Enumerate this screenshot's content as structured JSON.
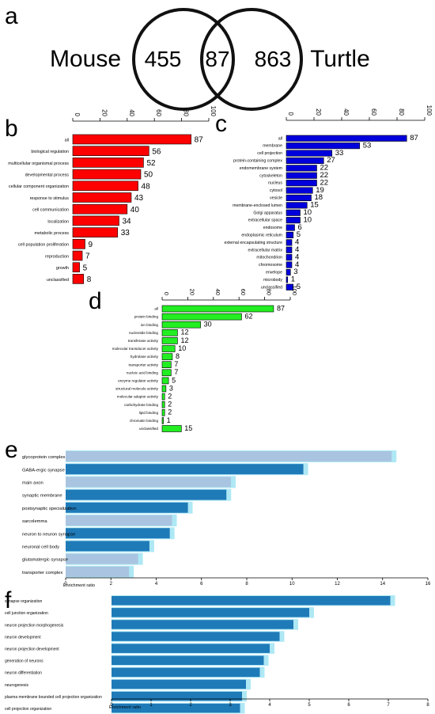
{
  "panels": {
    "a": "a",
    "b": "b",
    "c": "c",
    "d": "d",
    "e": "e",
    "f": "f"
  },
  "venn": {
    "left_label": "Mouse",
    "right_label": "Turtle",
    "left_only": "455",
    "overlap": "87",
    "right_only": "863"
  },
  "colors": {
    "panel_b": "#ff0000",
    "panel_c": "#0000dd",
    "panel_d": "#22ee22",
    "dark_bar": "#1f7ab8",
    "light_bar": "#a9c4e0",
    "glow": "#aee8f5"
  },
  "enrichment_label": "Enrichment ratio",
  "chart_data": [
    {
      "panel": "b",
      "type": "bar",
      "orientation": "horizontal",
      "xlim": [
        0,
        100
      ],
      "ticks": [
        "0",
        "20",
        "40",
        "60",
        "80",
        "100"
      ],
      "categories": [
        "all",
        "biological regulation",
        "multicellular organismal process",
        "developmental process",
        "cellular component organization",
        "response to stimulus",
        "cell communication",
        "localization",
        "metabolic process",
        "cell population proliferation",
        "reproduction",
        "growth",
        "unclassified"
      ],
      "values": [
        87,
        56,
        52,
        50,
        48,
        43,
        40,
        34,
        33,
        9,
        7,
        5,
        8
      ]
    },
    {
      "panel": "c",
      "type": "bar",
      "orientation": "horizontal",
      "xlim": [
        0,
        100
      ],
      "ticks": [
        "0",
        "20",
        "40",
        "60",
        "80",
        "100"
      ],
      "categories": [
        "all",
        "membrane",
        "cell projection",
        "protein-containing complex",
        "endomembrane system",
        "cytoskeleton",
        "nucleus",
        "cytosol",
        "vesicle",
        "membrane-enclosed lumen",
        "Golgi apparatus",
        "extracellular space",
        "endosome",
        "endoplasmic reticulum",
        "external encapsulating structure",
        "extracellular matrix",
        "mitochondrion",
        "chromosome",
        "envelope",
        "microbody",
        "unclassified"
      ],
      "values": [
        87,
        53,
        33,
        27,
        22,
        22,
        22,
        19,
        18,
        15,
        10,
        10,
        6,
        5,
        4,
        4,
        4,
        4,
        3,
        1,
        5
      ]
    },
    {
      "panel": "d",
      "type": "bar",
      "orientation": "horizontal",
      "xlim": [
        0,
        100
      ],
      "ticks": [
        "0",
        "20",
        "40",
        "60",
        "80",
        "100"
      ],
      "categories": [
        "all",
        "protein binding",
        "ion binding",
        "nucleotide binding",
        "transferase activity",
        "molecular transducer activity",
        "hydrolase activity",
        "transporter activity",
        "nucleic acid binding",
        "enzyme regulator activity",
        "structural molecule activity",
        "molecular adaptor activity",
        "carbohydrate binding",
        "lipid binding",
        "chromatin binding",
        "unclassified"
      ],
      "values": [
        87,
        62,
        30,
        12,
        12,
        10,
        8,
        7,
        7,
        5,
        3,
        2,
        2,
        2,
        1,
        15
      ]
    },
    {
      "panel": "e",
      "type": "bar",
      "orientation": "horizontal",
      "xlabel": "Enrichment ratio",
      "xlim": [
        0,
        16
      ],
      "ticks": [
        "0",
        "2",
        "4",
        "6",
        "8",
        "10",
        "12",
        "14",
        "16"
      ],
      "categories": [
        "glycoprotein complex",
        "GABA-ergic synapse",
        "main axon",
        "synaptic membrane",
        "postsynaptic specialization",
        "sarcolemma",
        "neuron to neuron synapse",
        "neuronal cell body",
        "glutamatergic synapse",
        "transporter complex"
      ],
      "values": [
        14.4,
        10.5,
        7.3,
        7.1,
        5.4,
        4.7,
        4.6,
        3.7,
        3.2,
        2.8
      ],
      "highlight": [
        false,
        true,
        false,
        true,
        true,
        false,
        true,
        true,
        false,
        false
      ]
    },
    {
      "panel": "f",
      "type": "bar",
      "orientation": "horizontal",
      "xlabel": "Enrichment ratio",
      "xlim": [
        0,
        8
      ],
      "ticks": [
        "0",
        "1",
        "2",
        "3",
        "4",
        "5",
        "6",
        "7",
        "8"
      ],
      "categories": [
        "synapse organization",
        "cell junction organization",
        "neuron projection morphogenesis",
        "neuron development",
        "neuron projection development",
        "generation of neurons",
        "neuron differentiation",
        "neurogenesis",
        "plasma membrane bounded cell projection organization",
        "cell projection organization"
      ],
      "values": [
        7.05,
        5.0,
        4.6,
        4.25,
        4.0,
        3.85,
        3.75,
        3.4,
        3.3,
        3.25
      ]
    }
  ]
}
